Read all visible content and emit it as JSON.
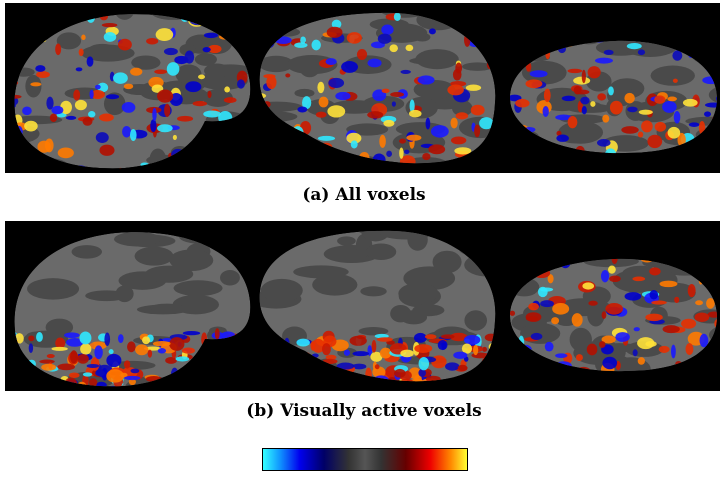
{
  "figure": {
    "panels": [
      {
        "caption": "(a) All voxels"
      },
      {
        "caption": "(b) Visually active voxels"
      }
    ]
  }
}
